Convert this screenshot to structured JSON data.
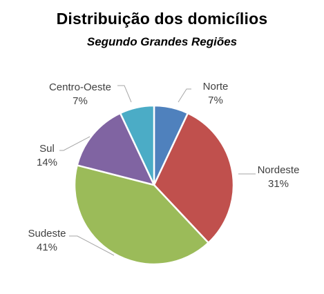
{
  "chart_data": {
    "type": "pie",
    "title": "Distribuição dos domicílios",
    "subtitle": "Segundo Grandes Regiões",
    "slices": [
      {
        "label": "Norte",
        "value": 7,
        "value_label": "7%",
        "color": "#4F81BD"
      },
      {
        "label": "Nordeste",
        "value": 31,
        "value_label": "31%",
        "color": "#C0504D"
      },
      {
        "label": "Sudeste",
        "value": 41,
        "value_label": "41%",
        "color": "#9BBB59"
      },
      {
        "label": "Sul",
        "value": 14,
        "value_label": "14%",
        "color": "#8064A2"
      },
      {
        "label": "Centro-Oeste",
        "value": 7,
        "value_label": "7%",
        "color": "#4BACC6"
      }
    ],
    "start_angle_deg": 0,
    "direction": "clockwise",
    "legend": "none",
    "data_labels": "outside with leader lines"
  }
}
